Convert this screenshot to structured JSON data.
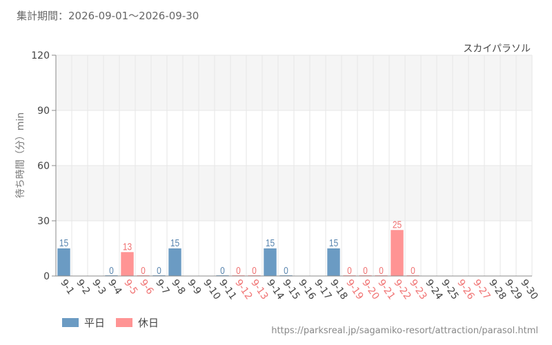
{
  "header": {
    "period_text": "集計期間：2026-09-01～2026-09-30"
  },
  "colors": {
    "weekday": "#6b9bc3",
    "weekday_label": "#5b87b0",
    "holiday": "#ff9494",
    "holiday_label": "#f07373",
    "weekday_tick": "#444444",
    "holiday_tick": "#f07373",
    "grid_band": "#f5f5f5",
    "grid_line": "#e6e6e6"
  },
  "legend": {
    "weekday_label": "平日",
    "holiday_label": "休日"
  },
  "source_url": "https://parksreal.jp/sagamiko-resort/attraction/parasol.html",
  "chart_data": {
    "type": "bar",
    "title": "スカイパラソル",
    "xlabel": "",
    "ylabel": "待ち時間（分）min",
    "ylim": [
      0,
      120
    ],
    "yticks": [
      0,
      30,
      60,
      90,
      120
    ],
    "categories": [
      "9-1",
      "9-2",
      "9-3",
      "9-4",
      "9-5",
      "9-6",
      "9-7",
      "9-8",
      "9-9",
      "9-10",
      "9-11",
      "9-12",
      "9-13",
      "9-14",
      "9-15",
      "9-16",
      "9-17",
      "9-18",
      "9-19",
      "9-20",
      "9-21",
      "9-22",
      "9-23",
      "9-24",
      "9-25",
      "9-26",
      "9-27",
      "9-28",
      "9-29",
      "9-30"
    ],
    "day_type": [
      "weekday",
      "weekday",
      "weekday",
      "weekday",
      "holiday",
      "holiday",
      "weekday",
      "weekday",
      "weekday",
      "weekday",
      "weekday",
      "holiday",
      "holiday",
      "weekday",
      "weekday",
      "weekday",
      "weekday",
      "weekday",
      "holiday",
      "holiday",
      "holiday",
      "holiday",
      "holiday",
      "weekday",
      "weekday",
      "holiday",
      "holiday",
      "weekday",
      "weekday",
      "weekday"
    ],
    "values": [
      15,
      null,
      null,
      0,
      13,
      0,
      0,
      15,
      null,
      null,
      0,
      0,
      0,
      15,
      0,
      null,
      null,
      15,
      0,
      0,
      0,
      25,
      0,
      null,
      null,
      null,
      null,
      null,
      null,
      null
    ],
    "series": [
      {
        "name": "平日"
      },
      {
        "name": "休日"
      }
    ],
    "grid": true
  }
}
